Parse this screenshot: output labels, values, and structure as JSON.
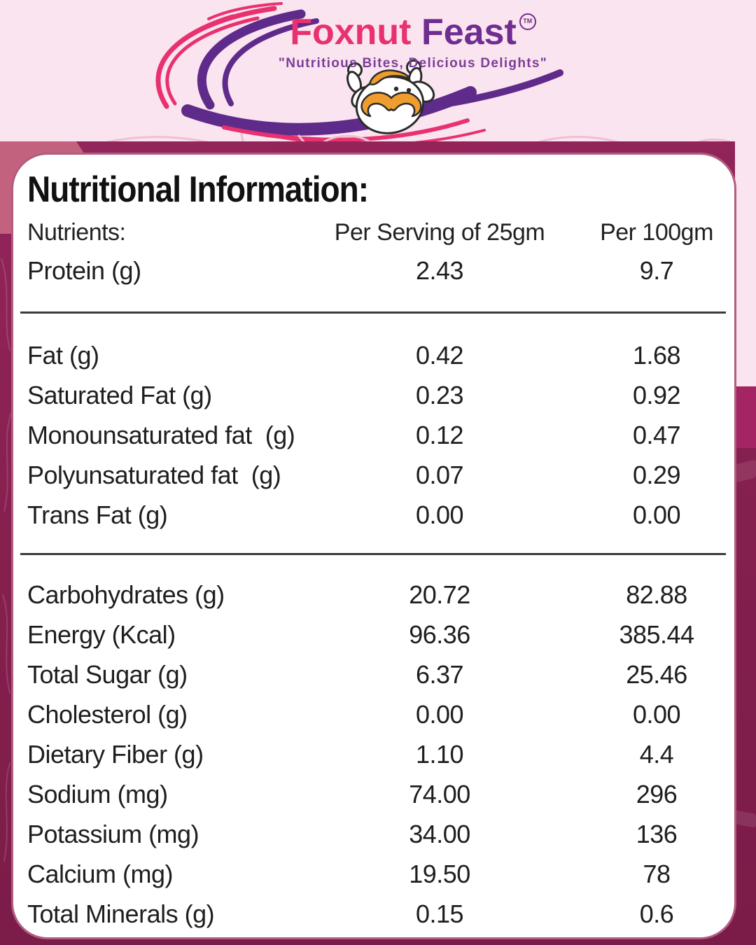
{
  "brand": {
    "name_primary": "Foxnut",
    "name_secondary": "Feast",
    "trademark": "TM",
    "tagline": "\"Nutritious Bites, Delicious Delights\""
  },
  "nutrition": {
    "title": "Nutritional Information:",
    "columns": {
      "nutrients": "Nutrients:",
      "per_serving": "Per Serving of 25gm",
      "per_100g": "Per 100gm"
    },
    "groups": [
      {
        "rows": [
          {
            "label": "Protein (g)",
            "per_serving": "2.43",
            "per_100g": "9.7"
          }
        ]
      },
      {
        "rows": [
          {
            "label": "Fat (g)",
            "per_serving": "0.42",
            "per_100g": "1.68"
          },
          {
            "label": "Saturated Fat (g)",
            "per_serving": "0.23",
            "per_100g": "0.92"
          },
          {
            "label": "Monounsaturated fat  (g)",
            "per_serving": "0.12",
            "per_100g": "0.47"
          },
          {
            "label": "Polyunsaturated fat  (g)",
            "per_serving": "0.07",
            "per_100g": "0.29"
          },
          {
            "label": "Trans Fat (g)",
            "per_serving": "0.00",
            "per_100g": "0.00"
          }
        ]
      },
      {
        "rows": [
          {
            "label": "Carbohydrates (g)",
            "per_serving": "20.72",
            "per_100g": "82.88"
          },
          {
            "label": "Energy (Kcal)",
            "per_serving": "96.36",
            "per_100g": "385.44"
          },
          {
            "label": "Total Sugar (g)",
            "per_serving": "6.37",
            "per_100g": "25.46"
          },
          {
            "label": "Cholesterol (g)",
            "per_serving": "0.00",
            "per_100g": "0.00"
          },
          {
            "label": "Dietary Fiber (g)",
            "per_serving": "1.10",
            "per_100g": "4.4"
          },
          {
            "label": "Sodium (mg)",
            "per_serving": "74.00",
            "per_100g": "296"
          },
          {
            "label": "Potassium (mg)",
            "per_serving": "34.00",
            "per_100g": "136"
          },
          {
            "label": "Calcium (mg)",
            "per_serving": "19.50",
            "per_100g": "78"
          },
          {
            "label": "Total Minerals (g)",
            "per_serving": "0.15",
            "per_100g": "0.6"
          }
        ]
      }
    ]
  },
  "colors": {
    "brand_pink": "#E8316F",
    "brand_purple": "#6F2D91",
    "tagline_purple": "#7B3E98",
    "mascot_orange": "#EE9D2E",
    "background_light_pink": "#FAE4EF",
    "background_magenta": "#86204F",
    "card_border": "#B25C80",
    "divider": "#3B3B3B",
    "text": "#1E1E1E"
  }
}
